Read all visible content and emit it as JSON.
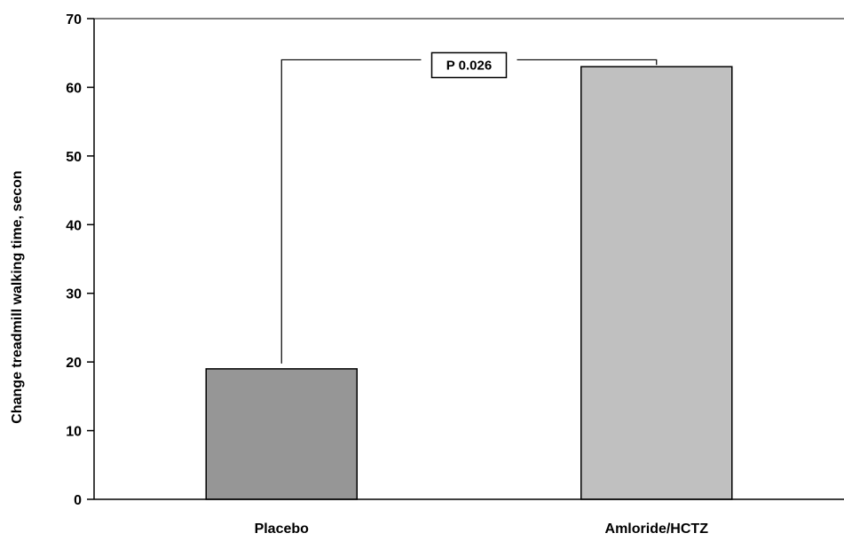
{
  "chart_data": {
    "type": "bar",
    "categories": [
      "Placebo",
      "Amloride/HCTZ"
    ],
    "values": [
      19,
      63
    ],
    "ylabel": "Change treadmill walking time, secon",
    "ylim": [
      0,
      70
    ],
    "yticks": [
      0,
      10,
      20,
      30,
      40,
      50,
      60,
      70
    ],
    "colors": [
      "#969696",
      "#c0c0c0"
    ],
    "grid": false,
    "annotation": {
      "text": "P 0.026",
      "connects": [
        "Placebo",
        "Amloride/HCTZ"
      ],
      "y": 64
    }
  }
}
